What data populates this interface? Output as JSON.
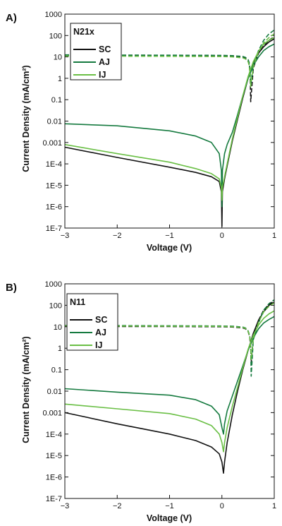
{
  "chart_data": [
    {
      "panel_label": "A)",
      "type": "line",
      "legend_title": "N21x",
      "legend_position": "top-left",
      "xlabel": "Voltage (V)",
      "ylabel": "Current Density  (mA/cm²)",
      "xlim": [
        -3,
        1
      ],
      "ylim": [
        1e-07,
        1000
      ],
      "yscale": "log",
      "x_ticks": [
        -3,
        -2,
        -1,
        0,
        1
      ],
      "x_tick_labels": [
        "−3",
        "−2",
        "−1",
        "0",
        "1"
      ],
      "y_ticks": [
        1e-07,
        1e-06,
        1e-05,
        0.0001,
        0.001,
        0.01,
        0.1,
        1,
        10,
        100,
        1000
      ],
      "y_tick_labels": [
        "1E-7",
        "1E-6",
        "1E-5",
        "1E-4",
        "0.001",
        "0.01",
        "0.1",
        "1",
        "10",
        "100",
        "1000"
      ],
      "grid": false,
      "series": [
        {
          "name": "SC",
          "color": "#111111",
          "dark_x": [
            -3,
            -2,
            -1,
            -0.5,
            -0.2,
            -0.05,
            -0.01,
            0,
            0.01,
            0.05,
            0.1,
            0.2,
            0.3,
            0.4,
            0.5,
            0.6,
            0.7,
            0.8,
            0.9,
            1.0
          ],
          "dark_y": [
            0.0006,
            0.0002,
            7e-05,
            4e-05,
            2.5e-05,
            1.5e-05,
            5e-06,
            1.2e-07,
            5e-06,
            2e-05,
            8e-05,
            0.0012,
            0.012,
            0.12,
            1.0,
            5.0,
            15,
            30,
            50,
            70
          ],
          "illum_x": [
            -3,
            -2,
            -1,
            0,
            0.2,
            0.4,
            0.45,
            0.5,
            0.52,
            0.54,
            0.55,
            0.6,
            0.7,
            0.8,
            0.9,
            1.0
          ],
          "illum_y": [
            11.5,
            11.2,
            11.0,
            10.8,
            10.5,
            9.5,
            8.5,
            6.5,
            4.5,
            1.5,
            0.08,
            3.0,
            15,
            35,
            60,
            90
          ]
        },
        {
          "name": "AJ",
          "color": "#157a3f",
          "dark_x": [
            -3,
            -2,
            -1,
            -0.5,
            -0.2,
            -0.05,
            -0.01,
            0,
            0.01,
            0.05,
            0.1,
            0.2,
            0.3,
            0.4,
            0.5,
            0.6,
            0.7,
            0.8,
            0.9,
            1.0
          ],
          "dark_y": [
            0.0075,
            0.006,
            0.0035,
            0.002,
            0.001,
            0.0003,
            5e-05,
            1e-06,
            5e-05,
            0.0003,
            0.0008,
            0.003,
            0.02,
            0.15,
            1.0,
            4.0,
            10,
            20,
            30,
            40
          ],
          "illum_x": [
            -3,
            -2,
            -1,
            0,
            0.2,
            0.4,
            0.45,
            0.5,
            0.52,
            0.54,
            0.55,
            0.6,
            0.7,
            0.8,
            0.9,
            1.0
          ],
          "illum_y": [
            12.5,
            12.2,
            12.0,
            11.8,
            11.5,
            10.5,
            9.5,
            7.5,
            5.5,
            2.5,
            0.5,
            4.0,
            20,
            60,
            120,
            180
          ]
        },
        {
          "name": "IJ",
          "color": "#6abf45",
          "dark_x": [
            -3,
            -2,
            -1,
            -0.5,
            -0.2,
            -0.05,
            -0.01,
            0,
            0.01,
            0.05,
            0.1,
            0.2,
            0.3,
            0.4,
            0.5,
            0.6,
            0.7,
            0.8,
            0.9,
            1.0
          ],
          "dark_y": [
            0.0008,
            0.0003,
            0.00012,
            6e-05,
            3.5e-05,
            2e-05,
            8e-06,
            2e-06,
            8e-06,
            2.5e-05,
            0.0001,
            0.0015,
            0.015,
            0.15,
            1.2,
            6.0,
            18,
            40,
            60,
            80
          ],
          "illum_x": [
            -3,
            -2,
            -1,
            0,
            0.2,
            0.4,
            0.45,
            0.5,
            0.52,
            0.54,
            0.55,
            0.6,
            0.7,
            0.8,
            0.9,
            1.0
          ],
          "illum_y": [
            11.0,
            10.8,
            10.6,
            10.4,
            10.0,
            9.0,
            8.0,
            6.0,
            4.0,
            1.5,
            0.4,
            3.5,
            18,
            45,
            80,
            120
          ]
        }
      ]
    },
    {
      "panel_label": "B)",
      "type": "line",
      "legend_title": "N11",
      "legend_position": "top-left",
      "xlabel": "Voltage (V)",
      "ylabel": "Current Density  (mA/cm²)",
      "xlim": [
        -3,
        1
      ],
      "ylim": [
        1e-07,
        1000
      ],
      "yscale": "log",
      "x_ticks": [
        -3,
        -2,
        -1,
        0,
        1
      ],
      "x_tick_labels": [
        "−3",
        "−2",
        "−1",
        "0",
        "1"
      ],
      "y_ticks": [
        1e-07,
        1e-06,
        1e-05,
        0.0001,
        0.001,
        0.01,
        0.1,
        1,
        10,
        100,
        1000
      ],
      "y_tick_labels": [
        "1E-7",
        "1E-6",
        "1E-5",
        "1E-4",
        "0.001",
        "0.01",
        "0.1",
        "1",
        "10",
        "100",
        "1000"
      ],
      "grid": false,
      "series": [
        {
          "name": "SC",
          "color": "#111111",
          "dark_x": [
            -3,
            -2,
            -1,
            -0.5,
            -0.2,
            -0.05,
            0,
            0.03,
            0.05,
            0.1,
            0.2,
            0.3,
            0.4,
            0.5,
            0.6,
            0.7,
            0.8,
            0.9,
            1.0
          ],
          "dark_y": [
            0.001,
            0.0003,
            0.0001,
            5e-05,
            2.5e-05,
            1.2e-05,
            5e-06,
            1.5e-06,
            5e-06,
            4e-05,
            0.0008,
            0.01,
            0.1,
            0.8,
            5.0,
            20,
            50,
            100,
            140
          ],
          "illum_x": [
            -3,
            -2,
            -1,
            0,
            0.2,
            0.4,
            0.45,
            0.5,
            0.53,
            0.55,
            0.56,
            0.6,
            0.7,
            0.8,
            0.9,
            1.0
          ],
          "illum_y": [
            10.5,
            10.3,
            10.2,
            10.0,
            9.7,
            8.8,
            8.0,
            6.0,
            3.5,
            1.0,
            0.2,
            3.0,
            20,
            60,
            110,
            160
          ]
        },
        {
          "name": "AJ",
          "color": "#157a3f",
          "dark_x": [
            -3,
            -2,
            -1,
            -0.5,
            -0.2,
            -0.05,
            0,
            0.03,
            0.05,
            0.1,
            0.2,
            0.3,
            0.4,
            0.5,
            0.6,
            0.7,
            0.8,
            0.9,
            1.0
          ],
          "dark_y": [
            0.013,
            0.009,
            0.0065,
            0.004,
            0.002,
            0.0008,
            0.0002,
            0.0001,
            0.0003,
            0.0012,
            0.006,
            0.03,
            0.15,
            0.8,
            3.0,
            8.0,
            15,
            22,
            30
          ],
          "illum_x": [
            -3,
            -2,
            -1,
            0,
            0.2,
            0.4,
            0.45,
            0.5,
            0.53,
            0.55,
            0.56,
            0.6,
            0.7,
            0.8,
            0.9,
            1.0
          ],
          "illum_y": [
            11.5,
            11.3,
            11.1,
            10.9,
            10.6,
            9.6,
            8.8,
            6.5,
            4.0,
            1.5,
            0.05,
            2.5,
            15,
            60,
            120,
            180
          ]
        },
        {
          "name": "IJ",
          "color": "#6abf45",
          "dark_x": [
            -3,
            -2,
            -1,
            -0.5,
            -0.2,
            -0.05,
            0,
            0.03,
            0.05,
            0.1,
            0.2,
            0.3,
            0.4,
            0.5,
            0.6,
            0.7,
            0.8,
            0.9,
            1.0
          ],
          "dark_y": [
            0.0025,
            0.0015,
            0.0009,
            0.0005,
            0.00025,
            0.0001,
            4e-05,
            1.5e-05,
            4e-05,
            0.0002,
            0.002,
            0.015,
            0.12,
            0.9,
            4.0,
            12,
            25,
            40,
            55
          ],
          "illum_x": [
            -3,
            -2,
            -1,
            0,
            0.2,
            0.4,
            0.45,
            0.5,
            0.53,
            0.55,
            0.56,
            0.6,
            0.7,
            0.8,
            0.9,
            1.0
          ],
          "illum_y": [
            11.0,
            10.8,
            10.6,
            10.4,
            10.1,
            9.2,
            8.4,
            6.2,
            3.8,
            1.2,
            0.3,
            3.0,
            16,
            50,
            90,
            130
          ]
        }
      ]
    }
  ]
}
